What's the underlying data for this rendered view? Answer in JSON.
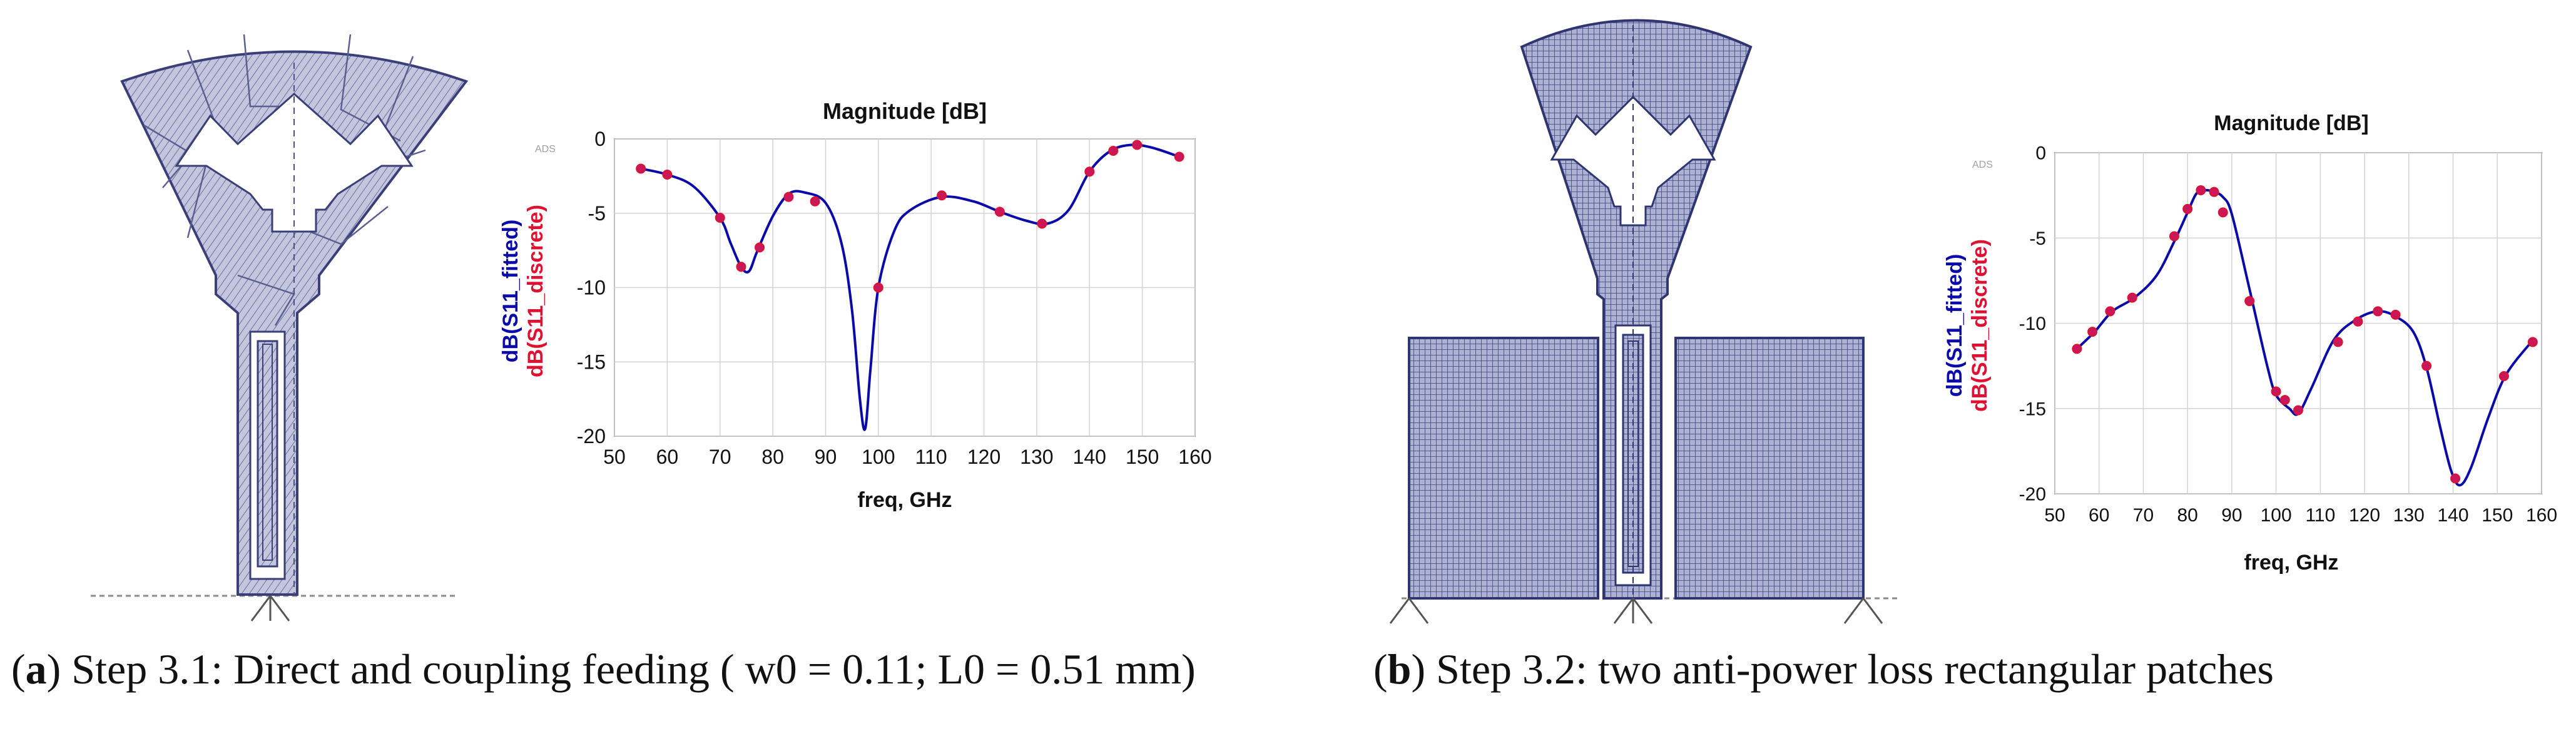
{
  "captions": [
    {
      "letter": "a",
      "text": ") Step 3.1: Direct and coupling feeding ( w0 = 0.11; L0 = 0.51 mm)"
    },
    {
      "letter": "b",
      "text": ") Step 3.2: two anti-power loss rectangular patches"
    }
  ],
  "colors": {
    "fitted": "#0a0aa8",
    "discrete": "#e01030",
    "marker_fill": "#c8185a",
    "antenna_line": "#3a3f7a",
    "antenna_fill": "#b9bcd6"
  },
  "chart_data": [
    {
      "type": "line",
      "title": "Magnitude [dB]",
      "xlabel": "freq, GHz",
      "ylabel_fitted": "dB(S11_fitted)",
      "ylabel_discrete": "dB(S11_discrete)",
      "watermark": "ADS",
      "xlim": [
        50,
        160
      ],
      "ylim": [
        -20,
        0
      ],
      "xticks": [
        50,
        60,
        70,
        80,
        90,
        100,
        110,
        120,
        130,
        140,
        150,
        160
      ],
      "yticks": [
        0,
        -5,
        -10,
        -15,
        -20
      ],
      "grid": true,
      "series": [
        {
          "name": "dB(S11_fitted)",
          "style": "line",
          "x": [
            55,
            60,
            65,
            70,
            72,
            74,
            75.5,
            77,
            80,
            83,
            86,
            90,
            93,
            95,
            96.5,
            97.5,
            98.5,
            100,
            103,
            106,
            112,
            118,
            123,
            128,
            132,
            136,
            140,
            144,
            148,
            152,
            157
          ],
          "y": [
            -2.0,
            -2.4,
            -3.2,
            -5.3,
            -7.0,
            -8.6,
            -8.9,
            -7.6,
            -5.2,
            -3.7,
            -3.6,
            -4.3,
            -7.0,
            -11.5,
            -17.5,
            -19.5,
            -15.5,
            -10.0,
            -6.2,
            -4.8,
            -3.9,
            -4.2,
            -4.9,
            -5.5,
            -5.7,
            -4.8,
            -2.2,
            -0.8,
            -0.4,
            -0.6,
            -1.2
          ]
        },
        {
          "name": "dB(S11_discrete)",
          "style": "markers",
          "x": [
            55,
            60,
            70,
            74,
            77.5,
            83,
            88,
            100,
            112,
            123,
            131,
            140,
            144.5,
            149,
            157
          ],
          "y": [
            -2.0,
            -2.4,
            -5.3,
            -8.6,
            -7.3,
            -3.9,
            -4.2,
            -10.0,
            -3.8,
            -4.9,
            -5.7,
            -2.2,
            -0.8,
            -0.4,
            -1.2
          ]
        }
      ]
    },
    {
      "type": "line",
      "title": "Magnitude [dB]",
      "xlabel": "freq, GHz",
      "ylabel_fitted": "dB(S11_fitted)",
      "ylabel_discrete": "dB(S11_discrete)",
      "watermark": "ADS",
      "xlim": [
        50,
        160
      ],
      "ylim": [
        -20,
        0
      ],
      "xticks": [
        50,
        60,
        70,
        80,
        90,
        100,
        110,
        120,
        130,
        140,
        150,
        160
      ],
      "yticks": [
        0,
        -5,
        -10,
        -15,
        -20
      ],
      "grid": true,
      "series": [
        {
          "name": "dB(S11_fitted)",
          "style": "line",
          "x": [
            55,
            59,
            63,
            68,
            73,
            77,
            80,
            82,
            84,
            86,
            88,
            90,
            94,
            98,
            100,
            103,
            105,
            108,
            113,
            118,
            123,
            127,
            131,
            134,
            137,
            139.5,
            141.5,
            144,
            148,
            152,
            158
          ],
          "y": [
            -11.5,
            -10.5,
            -9.3,
            -8.5,
            -7.2,
            -5.2,
            -3.5,
            -2.4,
            -2.2,
            -2.3,
            -2.6,
            -3.6,
            -8.0,
            -12.5,
            -14.2,
            -15.0,
            -15.3,
            -13.8,
            -11.0,
            -9.8,
            -9.3,
            -9.6,
            -10.5,
            -12.6,
            -16.0,
            -18.6,
            -19.5,
            -18.5,
            -15.5,
            -13.0,
            -11.0
          ]
        },
        {
          "name": "dB(S11_discrete)",
          "style": "markers",
          "x": [
            55,
            58.5,
            62.5,
            67.5,
            77,
            80,
            83,
            86,
            88,
            94,
            100,
            102,
            105,
            114,
            118.5,
            123,
            127,
            134,
            140.5,
            151.5,
            158
          ],
          "y": [
            -11.5,
            -10.5,
            -9.3,
            -8.5,
            -4.9,
            -3.3,
            -2.2,
            -2.3,
            -3.5,
            -8.7,
            -14.0,
            -14.5,
            -15.1,
            -11.1,
            -9.9,
            -9.3,
            -9.5,
            -12.5,
            -19.1,
            -13.1,
            -11.1
          ]
        }
      ]
    }
  ]
}
